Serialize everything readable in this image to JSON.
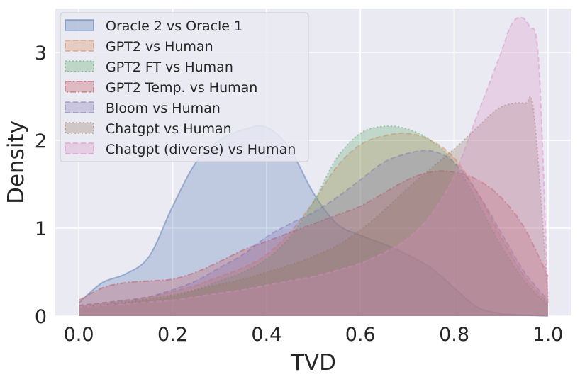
{
  "chart_data": {
    "type": "area",
    "title": "",
    "xlabel": "TVD",
    "ylabel": "Density",
    "xlim": [
      -0.05,
      1.05
    ],
    "ylim": [
      0,
      3.5
    ],
    "xticks": [
      0.0,
      0.2,
      0.4,
      0.6,
      0.8,
      1.0
    ],
    "xtick_labels": [
      "0.0",
      "0.2",
      "0.4",
      "0.6",
      "0.8",
      "1.0"
    ],
    "yticks": [
      0,
      1,
      2,
      3
    ],
    "ytick_labels": [
      "0",
      "1",
      "2",
      "3"
    ],
    "grid": true,
    "legend_position": "top-left",
    "series": [
      {
        "name": "Oracle 2 vs Oracle 1",
        "color": "#4c72b0",
        "style": "solid",
        "x": [
          0.0,
          0.05,
          0.1,
          0.15,
          0.2,
          0.25,
          0.3,
          0.35,
          0.4,
          0.45,
          0.5,
          0.55,
          0.6,
          0.65,
          0.7,
          0.75,
          0.8,
          0.85,
          0.9,
          0.95,
          1.0
        ],
        "y": [
          0.15,
          0.38,
          0.48,
          0.68,
          1.25,
          1.75,
          2.0,
          2.12,
          2.15,
          1.9,
          1.4,
          1.05,
          0.92,
          0.82,
          0.7,
          0.55,
          0.32,
          0.1,
          0.03,
          0.01,
          0.0
        ]
      },
      {
        "name": "GPT2 vs Human",
        "color": "#dd8452",
        "style": "dashed",
        "x": [
          0.0,
          0.05,
          0.1,
          0.15,
          0.2,
          0.25,
          0.3,
          0.35,
          0.4,
          0.45,
          0.5,
          0.55,
          0.6,
          0.65,
          0.7,
          0.75,
          0.8,
          0.85,
          0.9,
          0.95,
          1.0
        ],
        "y": [
          0.12,
          0.15,
          0.18,
          0.22,
          0.28,
          0.35,
          0.45,
          0.55,
          0.7,
          0.95,
          1.3,
          1.7,
          1.95,
          2.05,
          2.08,
          2.0,
          1.8,
          1.4,
          0.9,
          0.45,
          0.15
        ]
      },
      {
        "name": "GPT2 FT vs Human",
        "color": "#55a868",
        "style": "dotted",
        "x": [
          0.0,
          0.05,
          0.1,
          0.15,
          0.2,
          0.25,
          0.3,
          0.35,
          0.4,
          0.45,
          0.5,
          0.55,
          0.6,
          0.65,
          0.7,
          0.75,
          0.8,
          0.85,
          0.9,
          0.95,
          1.0
        ],
        "y": [
          0.1,
          0.12,
          0.15,
          0.18,
          0.22,
          0.3,
          0.4,
          0.5,
          0.65,
          0.9,
          1.3,
          1.8,
          2.08,
          2.16,
          2.13,
          2.0,
          1.75,
          1.3,
          0.8,
          0.4,
          0.12
        ]
      },
      {
        "name": "GPT2 Temp. vs Human",
        "color": "#c44e52",
        "style": "dashdot",
        "x": [
          0.0,
          0.05,
          0.1,
          0.15,
          0.2,
          0.25,
          0.3,
          0.35,
          0.4,
          0.45,
          0.5,
          0.55,
          0.6,
          0.65,
          0.7,
          0.75,
          0.8,
          0.85,
          0.9,
          0.95,
          1.0
        ],
        "y": [
          0.18,
          0.32,
          0.38,
          0.4,
          0.42,
          0.5,
          0.62,
          0.75,
          0.85,
          0.95,
          1.05,
          1.15,
          1.25,
          1.4,
          1.55,
          1.64,
          1.64,
          1.55,
          1.35,
          1.0,
          0.45
        ]
      },
      {
        "name": "Bloom vs Human",
        "color": "#8172b3",
        "style": "dashed",
        "x": [
          0.0,
          0.05,
          0.1,
          0.15,
          0.2,
          0.25,
          0.3,
          0.35,
          0.4,
          0.45,
          0.5,
          0.55,
          0.6,
          0.65,
          0.7,
          0.75,
          0.8,
          0.85,
          0.9,
          0.95,
          1.0
        ],
        "y": [
          0.12,
          0.15,
          0.18,
          0.22,
          0.3,
          0.4,
          0.55,
          0.7,
          0.9,
          1.05,
          1.18,
          1.35,
          1.55,
          1.75,
          1.85,
          1.88,
          1.75,
          1.4,
          0.95,
          0.5,
          0.18
        ]
      },
      {
        "name": "Chatgpt vs Human",
        "color": "#937860",
        "style": "dotted",
        "x": [
          0.0,
          0.05,
          0.1,
          0.15,
          0.2,
          0.25,
          0.3,
          0.35,
          0.4,
          0.45,
          0.5,
          0.55,
          0.6,
          0.65,
          0.7,
          0.75,
          0.8,
          0.85,
          0.9,
          0.95,
          0.97,
          1.0
        ],
        "y": [
          0.1,
          0.13,
          0.16,
          0.2,
          0.24,
          0.3,
          0.36,
          0.42,
          0.5,
          0.58,
          0.68,
          0.8,
          0.98,
          1.2,
          1.45,
          1.68,
          1.9,
          2.15,
          2.38,
          2.42,
          2.3,
          0.2
        ]
      },
      {
        "name": "Chatgpt (diverse) vs Human",
        "color": "#da8bc3",
        "style": "dashed",
        "x": [
          0.0,
          0.05,
          0.1,
          0.15,
          0.2,
          0.25,
          0.3,
          0.35,
          0.4,
          0.45,
          0.5,
          0.55,
          0.6,
          0.65,
          0.7,
          0.75,
          0.8,
          0.85,
          0.9,
          0.92,
          0.94,
          0.96,
          0.98,
          1.0
        ],
        "y": [
          0.1,
          0.12,
          0.14,
          0.16,
          0.18,
          0.22,
          0.26,
          0.3,
          0.35,
          0.4,
          0.45,
          0.52,
          0.6,
          0.72,
          0.88,
          1.15,
          1.6,
          2.3,
          3.0,
          3.3,
          3.4,
          3.3,
          2.9,
          0.15
        ]
      }
    ]
  }
}
